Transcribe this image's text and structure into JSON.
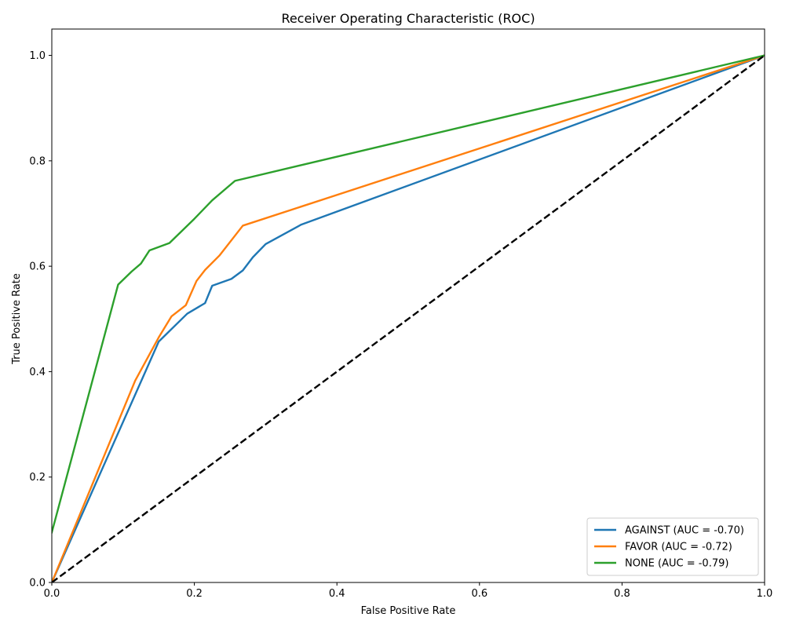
{
  "chart_data": {
    "type": "line",
    "title": "Receiver Operating Characteristic (ROC)",
    "xlabel": "False Positive Rate",
    "ylabel": "True Positive Rate",
    "xlim": [
      0.0,
      1.0
    ],
    "ylim": [
      0.0,
      1.05
    ],
    "xticks": [
      0.0,
      0.2,
      0.4,
      0.6,
      0.8,
      1.0
    ],
    "yticks": [
      0.0,
      0.2,
      0.4,
      0.6,
      0.8,
      1.0
    ],
    "xtick_labels": [
      "0.0",
      "0.2",
      "0.4",
      "0.6",
      "0.8",
      "1.0"
    ],
    "ytick_labels": [
      "0.0",
      "0.2",
      "0.4",
      "0.6",
      "0.8",
      "1.0"
    ],
    "grid": false,
    "legend_position": "lower-right",
    "series": [
      {
        "name": "AGAINST (AUC = -0.70)",
        "color": "#1f77b4",
        "x": [
          0.0,
          0.15,
          0.19,
          0.215,
          0.225,
          0.252,
          0.268,
          0.282,
          0.3,
          0.35,
          1.0
        ],
        "y": [
          0.0,
          0.457,
          0.51,
          0.53,
          0.563,
          0.576,
          0.592,
          0.617,
          0.642,
          0.679,
          1.0
        ]
      },
      {
        "name": "FAVOR (AUC = -0.72)",
        "color": "#ff7f0e",
        "x": [
          0.0,
          0.117,
          0.15,
          0.168,
          0.188,
          0.203,
          0.215,
          0.235,
          0.268,
          1.0
        ],
        "y": [
          0.0,
          0.383,
          0.465,
          0.505,
          0.526,
          0.572,
          0.593,
          0.62,
          0.677,
          1.0
        ]
      },
      {
        "name": "NONE (AUC = -0.79)",
        "color": "#2ca02c",
        "x": [
          0.0,
          0.093,
          0.112,
          0.125,
          0.137,
          0.165,
          0.2,
          0.225,
          0.257,
          1.0
        ],
        "y": [
          0.095,
          0.565,
          0.59,
          0.605,
          0.63,
          0.644,
          0.69,
          0.725,
          0.762,
          1.0
        ]
      }
    ],
    "reference_line": {
      "color": "#000000",
      "style": "dashed",
      "x": [
        0.0,
        1.0
      ],
      "y": [
        0.0,
        1.0
      ]
    }
  }
}
